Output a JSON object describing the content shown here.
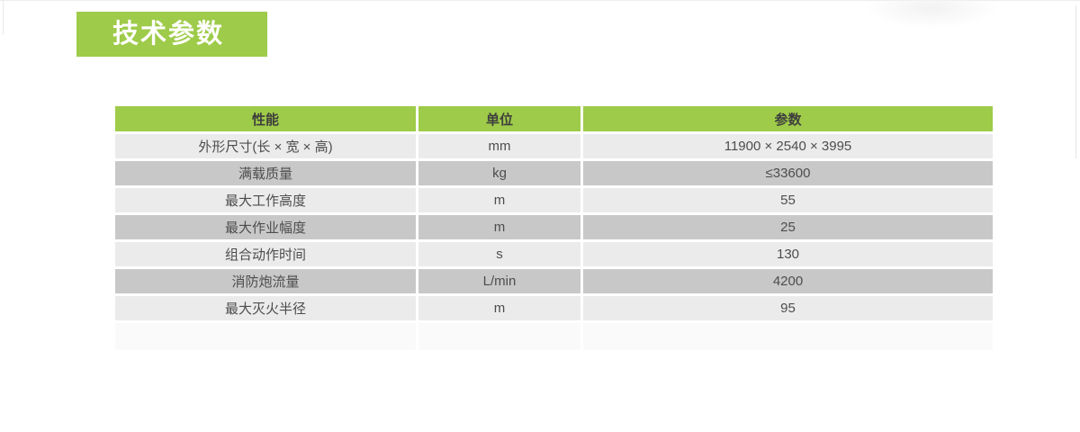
{
  "section": {
    "title": "技术参数"
  },
  "colors": {
    "accent_green": "#9ecb49",
    "row_light": "#ebebeb",
    "row_dark": "#c8c8c8",
    "header_text": "#3e3e3e",
    "cell_text": "#4d4d4d",
    "banner_text": "#ffffff"
  },
  "table": {
    "columns": [
      "性能",
      "单位",
      "参数"
    ],
    "rows": [
      {
        "name": "外形尺寸(长 × 宽 × 高)",
        "unit": "mm",
        "value": "11900 × 2540 × 3995"
      },
      {
        "name": "满载质量",
        "unit": "kg",
        "value": "≤33600"
      },
      {
        "name": "最大工作高度",
        "unit": "m",
        "value": "55"
      },
      {
        "name": "最大作业幅度",
        "unit": "m",
        "value": "25"
      },
      {
        "name": "组合动作时间",
        "unit": "s",
        "value": "130"
      },
      {
        "name": "消防炮流量",
        "unit": "L/min",
        "value": "4200"
      },
      {
        "name": "最大灭火半径",
        "unit": "m",
        "value": "95"
      }
    ]
  }
}
